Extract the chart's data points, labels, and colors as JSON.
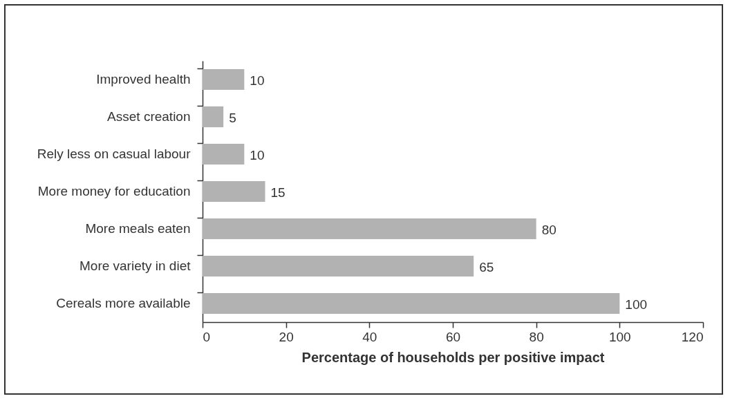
{
  "chart_data": {
    "type": "bar",
    "orientation": "horizontal",
    "xlabel": "Percentage of households per positive impact",
    "categories": [
      "Improved health",
      "Asset creation",
      "Rely less on casual labour",
      "More money for education",
      "More meals eaten",
      "More variety in diet",
      "Cereals more available"
    ],
    "values": [
      10,
      5,
      10,
      15,
      80,
      65,
      100
    ],
    "color": "#b2b2b3",
    "xlim": [
      0,
      120
    ],
    "xticks": [
      0,
      20,
      40,
      60,
      80,
      100,
      120
    ],
    "data_labels": true,
    "grid": false
  }
}
